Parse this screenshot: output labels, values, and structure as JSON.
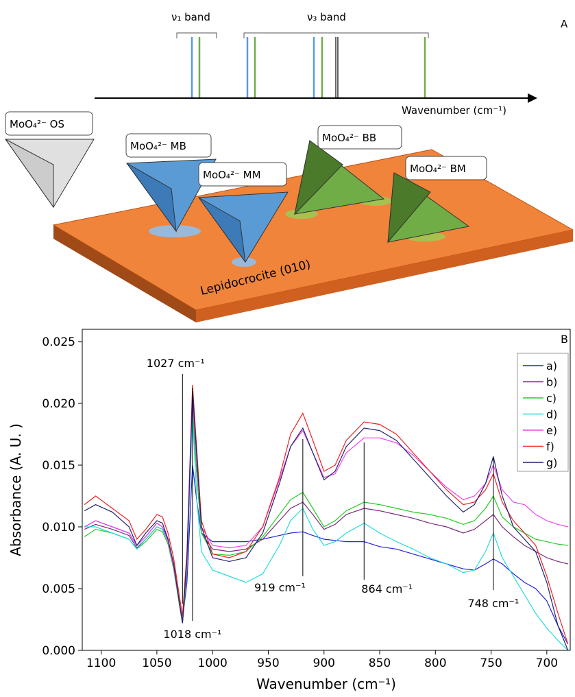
{
  "diagram": {
    "panel": "A",
    "nu1": "ν₁ band",
    "nu3": "ν₃ band",
    "axis_label": "Wavenumber (cm⁻¹)",
    "labels": [
      "MoO₄²⁻ OS",
      "MoO₄²⁻ MB",
      "MoO₄²⁻ MM",
      "MoO₄²⁻ BB",
      "MoO₄²⁻ BM"
    ],
    "surface": "Lepidocrocite (010)"
  },
  "chart_data": {
    "type": "line",
    "panel": "B",
    "x_label": "Wavenumber (cm⁻¹)",
    "y_label": "Absorbance  (A. U. )",
    "xlim": [
      1117,
      679
    ],
    "ylim": [
      0,
      0.026
    ],
    "xticks": [
      1100,
      1050,
      1000,
      950,
      900,
      850,
      800,
      750,
      700
    ],
    "yticks": [
      {
        "value": 0,
        "label": "0.000"
      },
      {
        "value": 0.005,
        "label": "0.005"
      },
      {
        "value": 0.01,
        "label": "0.010"
      },
      {
        "value": 0.015,
        "label": "0.015"
      },
      {
        "value": 0.02,
        "label": "0.020"
      },
      {
        "value": 0.025,
        "label": "0.025"
      }
    ],
    "legend": "upper right",
    "x": [
      1115,
      1105,
      1090,
      1075,
      1068,
      1060,
      1050,
      1045,
      1040,
      1035,
      1030,
      1027,
      1023,
      1018,
      1014,
      1010,
      1000,
      985,
      970,
      955,
      940,
      930,
      919,
      910,
      900,
      890,
      880,
      864,
      850,
      835,
      820,
      805,
      790,
      775,
      765,
      755,
      748,
      740,
      730,
      720,
      710,
      700,
      690,
      681
    ],
    "series": [
      {
        "name": "a)",
        "color": "#2222dd",
        "values": [
          0.01,
          0.0105,
          0.01,
          0.0095,
          0.0085,
          0.0092,
          0.0103,
          0.01,
          0.009,
          0.007,
          0.004,
          0.0025,
          0.0055,
          0.015,
          0.012,
          0.0095,
          0.0088,
          0.0088,
          0.0088,
          0.009,
          0.0093,
          0.0095,
          0.0096,
          0.0093,
          0.009,
          0.0089,
          0.0088,
          0.0088,
          0.0084,
          0.0082,
          0.0078,
          0.0074,
          0.007,
          0.0066,
          0.0065,
          0.007,
          0.0074,
          0.007,
          0.0062,
          0.0055,
          0.005,
          0.004,
          0.002,
          0.0005
        ]
      },
      {
        "name": "b)",
        "color": "#7a2a7a",
        "values": [
          0.0098,
          0.0102,
          0.0098,
          0.0093,
          0.0083,
          0.009,
          0.01,
          0.0098,
          0.0088,
          0.0068,
          0.0038,
          0.0022,
          0.0065,
          0.02,
          0.014,
          0.0095,
          0.0082,
          0.008,
          0.0082,
          0.009,
          0.0105,
          0.0115,
          0.012,
          0.011,
          0.0098,
          0.0102,
          0.011,
          0.0115,
          0.0113,
          0.011,
          0.0107,
          0.0103,
          0.01,
          0.0095,
          0.0098,
          0.0105,
          0.011,
          0.01,
          0.0092,
          0.0085,
          0.008,
          0.0075,
          0.0072,
          0.007
        ]
      },
      {
        "name": "c)",
        "color": "#22cc22",
        "values": [
          0.0092,
          0.0098,
          0.0095,
          0.009,
          0.0082,
          0.0088,
          0.0098,
          0.0096,
          0.0086,
          0.0066,
          0.0038,
          0.0022,
          0.0065,
          0.0195,
          0.014,
          0.0095,
          0.0078,
          0.0077,
          0.008,
          0.0092,
          0.011,
          0.0122,
          0.0128,
          0.0115,
          0.01,
          0.0105,
          0.0113,
          0.012,
          0.0118,
          0.0115,
          0.0112,
          0.011,
          0.0107,
          0.0102,
          0.0105,
          0.0115,
          0.0125,
          0.0108,
          0.01,
          0.0095,
          0.009,
          0.0088,
          0.0086,
          0.0085
        ]
      },
      {
        "name": "d)",
        "color": "#22dddd",
        "values": [
          0.01,
          0.01,
          0.0095,
          0.009,
          0.0082,
          0.009,
          0.01,
          0.0098,
          0.0088,
          0.0068,
          0.004,
          0.0025,
          0.0068,
          0.019,
          0.012,
          0.008,
          0.0065,
          0.006,
          0.0055,
          0.0062,
          0.0085,
          0.0105,
          0.0115,
          0.0098,
          0.0085,
          0.0088,
          0.0095,
          0.0103,
          0.0095,
          0.0088,
          0.0082,
          0.0075,
          0.007,
          0.0063,
          0.0065,
          0.008,
          0.0095,
          0.0075,
          0.006,
          0.0045,
          0.003,
          0.0018,
          0.0008,
          0.0
        ]
      },
      {
        "name": "e)",
        "color": "#ee44ee",
        "values": [
          0.01,
          0.0105,
          0.01,
          0.0095,
          0.0085,
          0.0092,
          0.0103,
          0.01,
          0.0088,
          0.0068,
          0.004,
          0.0025,
          0.007,
          0.0205,
          0.015,
          0.01,
          0.0085,
          0.0083,
          0.0085,
          0.01,
          0.0138,
          0.0165,
          0.0178,
          0.016,
          0.014,
          0.0143,
          0.016,
          0.0172,
          0.0172,
          0.0168,
          0.0158,
          0.0145,
          0.0132,
          0.0122,
          0.0125,
          0.0135,
          0.015,
          0.013,
          0.012,
          0.0118,
          0.011,
          0.0105,
          0.0102,
          0.01
        ]
      },
      {
        "name": "f)",
        "color": "#ee2222",
        "values": [
          0.0118,
          0.0125,
          0.0115,
          0.0105,
          0.009,
          0.0098,
          0.011,
          0.0108,
          0.0095,
          0.0075,
          0.0045,
          0.0028,
          0.008,
          0.0215,
          0.016,
          0.0105,
          0.0078,
          0.0075,
          0.008,
          0.01,
          0.014,
          0.0175,
          0.0192,
          0.017,
          0.0145,
          0.015,
          0.017,
          0.0185,
          0.0183,
          0.0175,
          0.016,
          0.0145,
          0.013,
          0.0118,
          0.012,
          0.013,
          0.0143,
          0.012,
          0.0105,
          0.0095,
          0.0085,
          0.006,
          0.003,
          0.0005
        ]
      },
      {
        "name": "g)",
        "color": "#22226e",
        "values": [
          0.0113,
          0.0118,
          0.0112,
          0.01,
          0.0085,
          0.0095,
          0.0105,
          0.0103,
          0.009,
          0.007,
          0.004,
          0.0022,
          0.0075,
          0.021,
          0.0155,
          0.01,
          0.0075,
          0.0072,
          0.0075,
          0.0095,
          0.0135,
          0.0165,
          0.018,
          0.016,
          0.0138,
          0.0145,
          0.0165,
          0.018,
          0.0178,
          0.017,
          0.0155,
          0.014,
          0.0125,
          0.0112,
          0.0118,
          0.0135,
          0.0157,
          0.0125,
          0.01,
          0.009,
          0.008,
          0.0055,
          0.002,
          0.0
        ]
      }
    ],
    "annotations": [
      {
        "text": "1027 cm⁻¹",
        "x": 1027
      },
      {
        "text": "1018 cm⁻¹",
        "x": 1018
      },
      {
        "text": "919 cm⁻¹",
        "x": 919
      },
      {
        "text": "864 cm⁻¹",
        "x": 864
      },
      {
        "text": "748 cm⁻¹",
        "x": 748
      }
    ]
  }
}
